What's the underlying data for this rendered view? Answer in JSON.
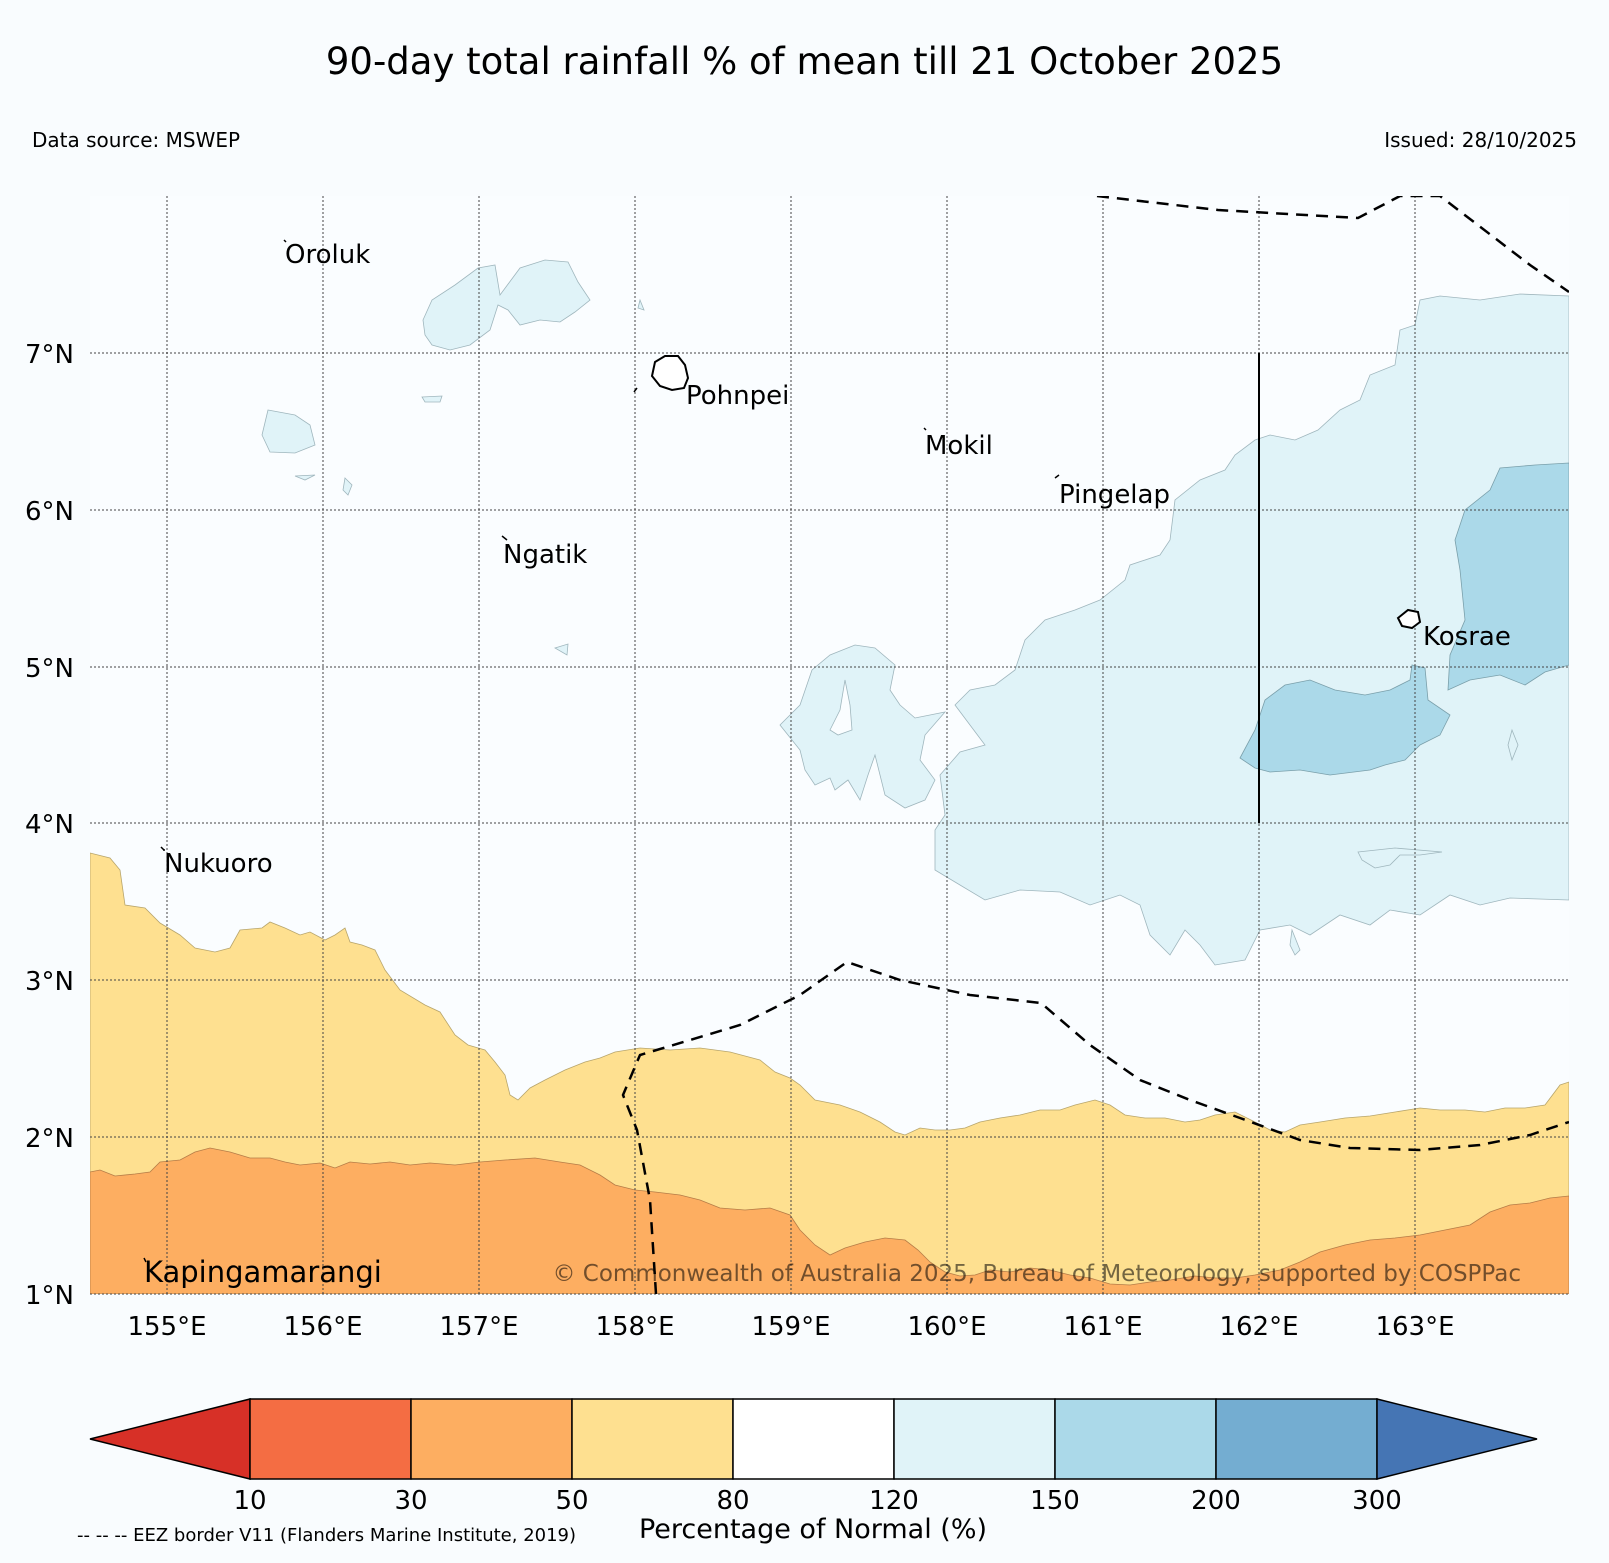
{
  "title": "90-day total rainfall % of mean till 21 October 2025",
  "data_source": "Data source: MSWEP",
  "issued": "Issued: 28/10/2025",
  "map": {
    "lat_labels": [
      "1°N",
      "2°N",
      "3°N",
      "4°N",
      "5°N",
      "6°N",
      "7°N"
    ],
    "lon_labels": [
      "155°E",
      "156°E",
      "157°E",
      "158°E",
      "159°E",
      "160°E",
      "161°E",
      "162°E",
      "163°E"
    ],
    "islands": [
      {
        "name": "Oroluk"
      },
      {
        "name": "Pohnpei"
      },
      {
        "name": "Mokil"
      },
      {
        "name": "Pingelap"
      },
      {
        "name": "Ngatik"
      },
      {
        "name": "Kosrae"
      },
      {
        "name": "Nukuoro"
      },
      {
        "name": "Kapingamarangi"
      }
    ],
    "copyright": "© Commonwealth of Australia 2025, Bureau of Meteorology, supported by COSPPac"
  },
  "colorbar": {
    "label": "Percentage of Normal (%)",
    "ticks": [
      "10",
      "30",
      "50",
      "80",
      "120",
      "150",
      "200",
      "300"
    ],
    "colors": [
      "#d73027",
      "#f46d43",
      "#fdae61",
      "#fee090",
      "#ffffff",
      "#e0f3f8",
      "#abd9e9",
      "#74add1",
      "#4575b4"
    ]
  },
  "eez_note": "-- -- -- EEZ border V11 (Flanders Marine Institute, 2019)"
}
